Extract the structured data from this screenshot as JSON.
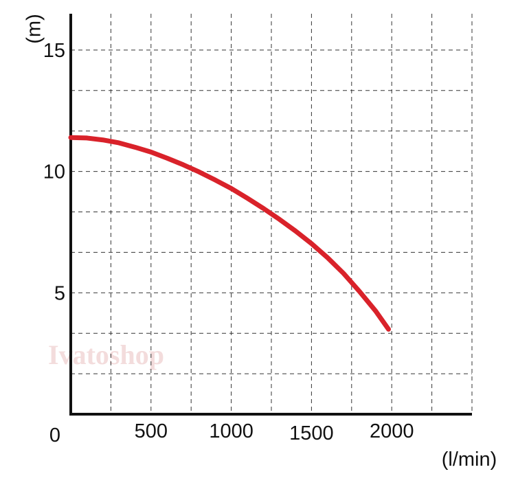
{
  "watermark": "Ivatoshop",
  "chart_data": {
    "type": "line",
    "title": "",
    "xlabel": "(l/min)",
    "ylabel": "(m)",
    "xlim": [
      0,
      2500
    ],
    "ylim": [
      0,
      16.5
    ],
    "grid": true,
    "x_grid_step": 250,
    "y_grid_step": 1.667,
    "x_ticks": [
      {
        "value": 0,
        "label": "0"
      },
      {
        "value": 500,
        "label": "500"
      },
      {
        "value": 1000,
        "label": "1000"
      },
      {
        "value": 1500,
        "label": "1500"
      },
      {
        "value": 2000,
        "label": "2000"
      }
    ],
    "y_ticks": [
      {
        "value": 5,
        "label": "5"
      },
      {
        "value": 10,
        "label": "10"
      },
      {
        "value": 15,
        "label": "15"
      }
    ],
    "series": [
      {
        "color": "#d9222a",
        "x": [
          0,
          100,
          200,
          300,
          400,
          500,
          600,
          700,
          800,
          900,
          1000,
          1100,
          1200,
          1300,
          1400,
          1500,
          1600,
          1700,
          1800,
          1900,
          1980
        ],
        "values": [
          11.4,
          11.38,
          11.3,
          11.18,
          11.0,
          10.8,
          10.55,
          10.28,
          9.98,
          9.65,
          9.3,
          8.9,
          8.48,
          8.03,
          7.55,
          7.03,
          6.45,
          5.8,
          5.05,
          4.25,
          3.5
        ]
      }
    ]
  }
}
